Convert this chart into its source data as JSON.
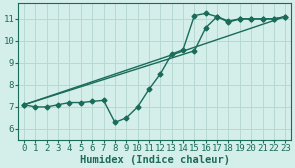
{
  "background_color": "#d4eeea",
  "grid_color": "#b8d8d4",
  "line_color": "#1a6b5a",
  "line_width": 1.0,
  "marker": "D",
  "marker_size": 2.5,
  "xlabel": "Humidex (Indice chaleur)",
  "xlabel_fontsize": 7.5,
  "tick_fontsize": 6.5,
  "xlim": [
    -0.5,
    23.5
  ],
  "ylim": [
    5.5,
    11.7
  ],
  "xticks": [
    0,
    1,
    2,
    3,
    4,
    5,
    6,
    7,
    8,
    9,
    10,
    11,
    12,
    13,
    14,
    15,
    16,
    17,
    18,
    19,
    20,
    21,
    22,
    23
  ],
  "yticks": [
    6,
    7,
    8,
    9,
    10,
    11
  ],
  "series": [
    {
      "x": [
        0,
        1,
        2,
        3,
        4,
        5,
        6,
        7,
        8,
        9,
        10,
        11,
        12,
        13,
        14,
        15,
        16,
        17,
        18,
        19,
        20,
        21,
        22,
        23
      ],
      "y": [
        7.1,
        7.0,
        7.0,
        7.1,
        7.2,
        7.2,
        7.25,
        7.3,
        6.3,
        6.5,
        7.0,
        7.8,
        8.5,
        9.4,
        9.6,
        11.15,
        11.25,
        11.1,
        10.9,
        11.0,
        11.0,
        11.0,
        11.0,
        11.1
      ],
      "has_markers": true
    },
    {
      "x": [
        0,
        15,
        16,
        17,
        18,
        19,
        20,
        21,
        22,
        23
      ],
      "y": [
        7.1,
        9.55,
        10.6,
        11.1,
        10.85,
        11.0,
        11.0,
        11.0,
        11.0,
        11.1
      ],
      "has_markers": true
    },
    {
      "x": [
        0,
        23
      ],
      "y": [
        7.1,
        11.1
      ],
      "has_markers": false
    }
  ]
}
